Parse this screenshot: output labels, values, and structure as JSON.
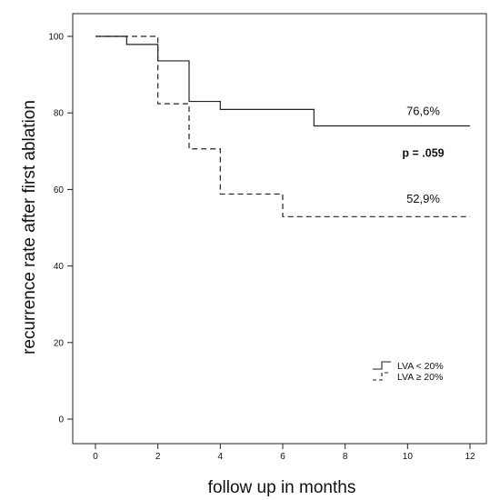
{
  "chart_data": {
    "type": "line",
    "subtype": "step",
    "title": "",
    "xlabel": "follow up in months",
    "ylabel": "recurrence rate after first ablation",
    "xlim": [
      0,
      12
    ],
    "ylim": [
      0,
      100
    ],
    "xticks": [
      0,
      2,
      4,
      6,
      8,
      10,
      12
    ],
    "yticks": [
      0,
      20,
      40,
      60,
      80,
      100
    ],
    "grid": false,
    "legend_position": "bottom-right",
    "series": [
      {
        "name": "LVA < 20%",
        "line_style": "solid",
        "x": [
          0,
          1,
          2,
          3,
          4,
          7,
          12
        ],
        "y": [
          100,
          97.9,
          93.6,
          83.0,
          80.9,
          76.6,
          76.6
        ]
      },
      {
        "name": "LVA ≥ 20%",
        "line_style": "dashed",
        "x": [
          0,
          2,
          3,
          4,
          6,
          12
        ],
        "y": [
          100,
          82.4,
          70.6,
          58.8,
          52.9,
          52.9
        ]
      }
    ],
    "annotations": [
      {
        "text": "76,6%",
        "x": 10.5,
        "y": 79.5,
        "bold": false
      },
      {
        "text": "p = .059",
        "x": 10.5,
        "y": 68.5,
        "bold": true
      },
      {
        "text": "52,9%",
        "x": 10.5,
        "y": 56.5,
        "bold": false
      }
    ]
  }
}
